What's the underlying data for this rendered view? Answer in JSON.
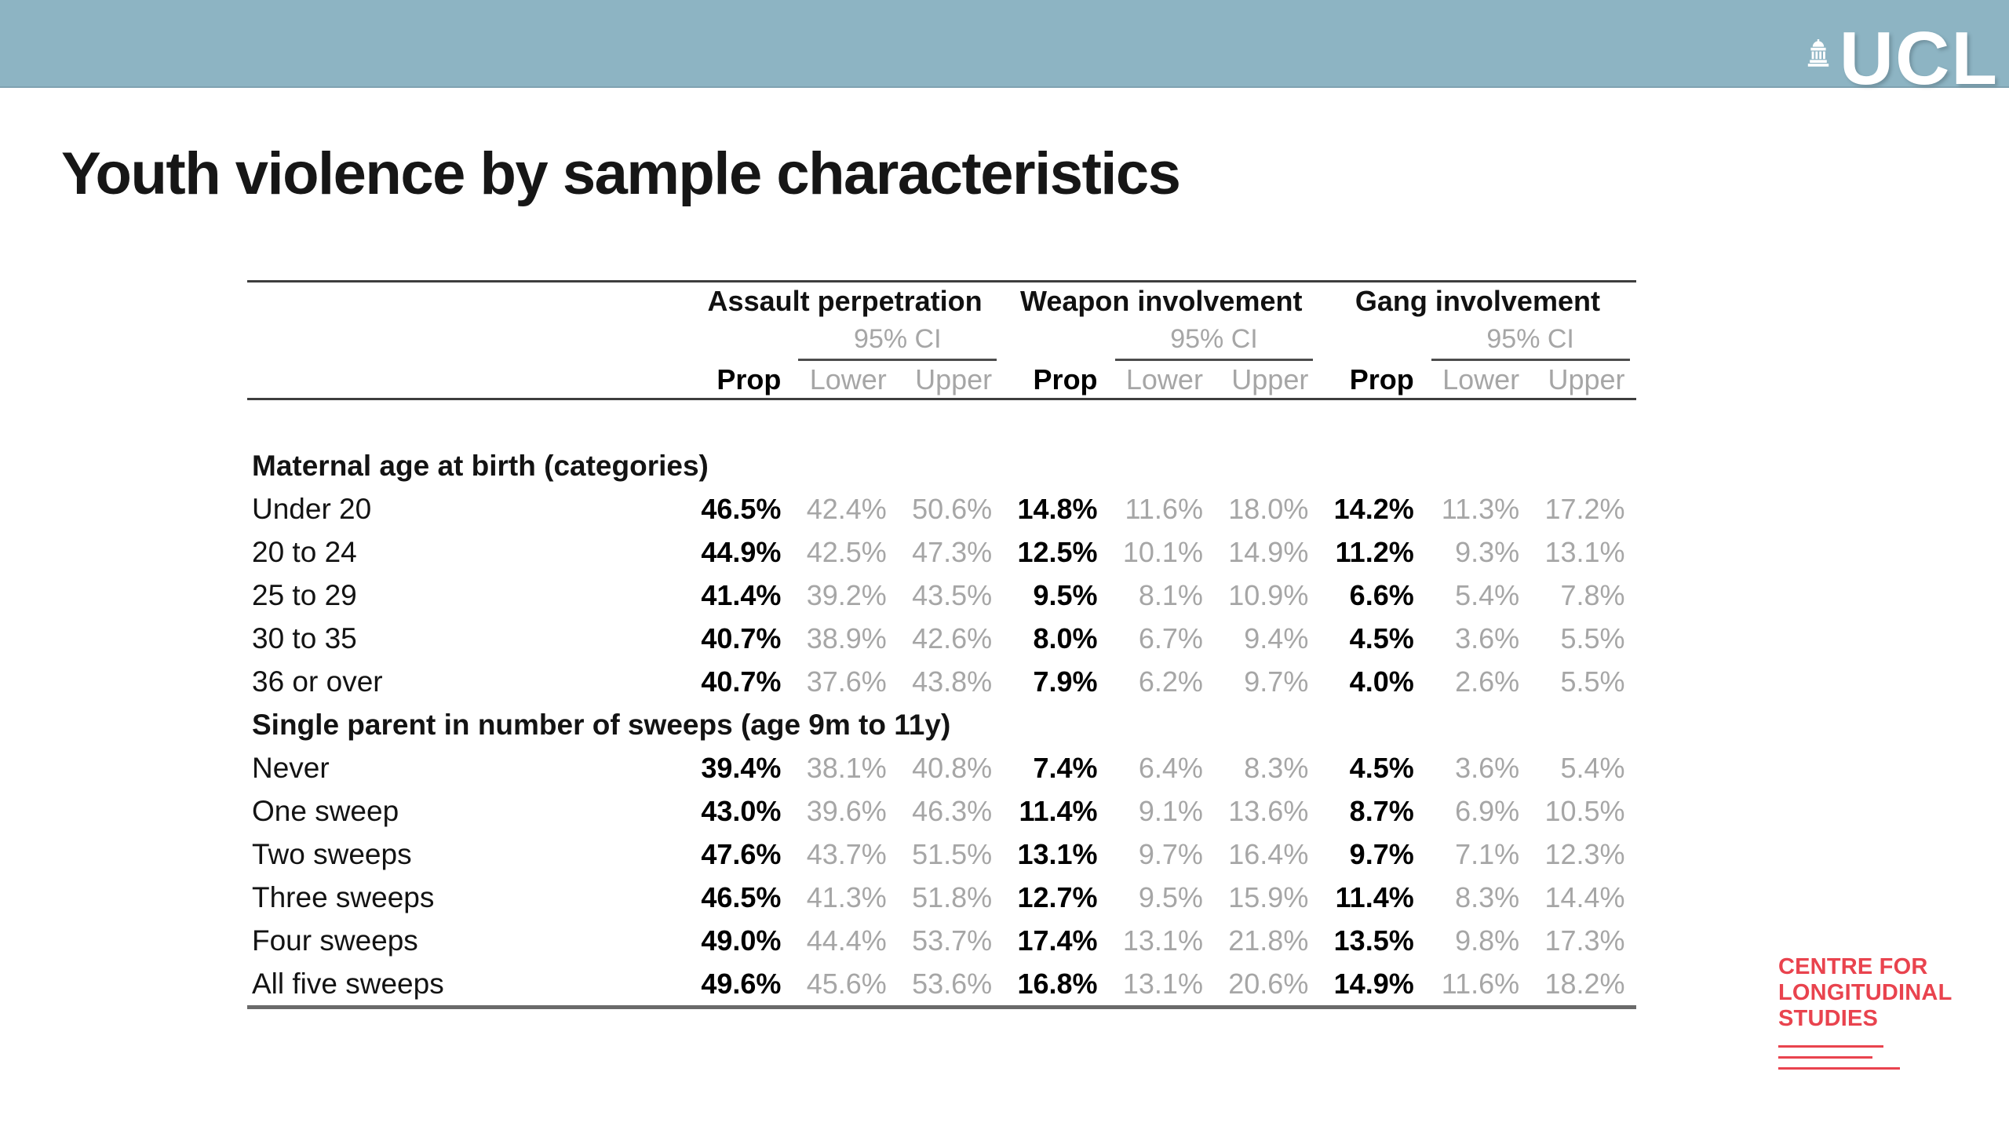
{
  "banner": {
    "logo_text": "UCL"
  },
  "title": "Youth violence by sample characteristics",
  "table": {
    "groups": [
      {
        "label": "Assault perpetration",
        "ci_label": "95% CI"
      },
      {
        "label": "Weapon involvement",
        "ci_label": "95% CI"
      },
      {
        "label": "Gang involvement",
        "ci_label": "95% CI"
      }
    ],
    "col_headers": {
      "prop": "Prop",
      "lower": "Lower",
      "upper": "Upper"
    },
    "sections": [
      {
        "header": "Maternal age at birth (categories)",
        "rows": [
          {
            "label": "Under 20",
            "values": [
              "46.5%",
              "42.4%",
              "50.6%",
              "14.8%",
              "11.6%",
              "18.0%",
              "14.2%",
              "11.3%",
              "17.2%"
            ]
          },
          {
            "label": "20 to 24",
            "values": [
              "44.9%",
              "42.5%",
              "47.3%",
              "12.5%",
              "10.1%",
              "14.9%",
              "11.2%",
              "9.3%",
              "13.1%"
            ]
          },
          {
            "label": "25 to 29",
            "values": [
              "41.4%",
              "39.2%",
              "43.5%",
              "9.5%",
              "8.1%",
              "10.9%",
              "6.6%",
              "5.4%",
              "7.8%"
            ]
          },
          {
            "label": "30 to 35",
            "values": [
              "40.7%",
              "38.9%",
              "42.6%",
              "8.0%",
              "6.7%",
              "9.4%",
              "4.5%",
              "3.6%",
              "5.5%"
            ]
          },
          {
            "label": "36 or over",
            "values": [
              "40.7%",
              "37.6%",
              "43.8%",
              "7.9%",
              "6.2%",
              "9.7%",
              "4.0%",
              "2.6%",
              "5.5%"
            ]
          }
        ]
      },
      {
        "header": "Single parent in number of sweeps (age 9m to 11y)",
        "rows": [
          {
            "label": "Never",
            "values": [
              "39.4%",
              "38.1%",
              "40.8%",
              "7.4%",
              "6.4%",
              "8.3%",
              "4.5%",
              "3.6%",
              "5.4%"
            ]
          },
          {
            "label": "One sweep",
            "values": [
              "43.0%",
              "39.6%",
              "46.3%",
              "11.4%",
              "9.1%",
              "13.6%",
              "8.7%",
              "6.9%",
              "10.5%"
            ]
          },
          {
            "label": "Two sweeps",
            "values": [
              "47.6%",
              "43.7%",
              "51.5%",
              "13.1%",
              "9.7%",
              "16.4%",
              "9.7%",
              "7.1%",
              "12.3%"
            ]
          },
          {
            "label": "Three sweeps",
            "values": [
              "46.5%",
              "41.3%",
              "51.8%",
              "12.7%",
              "9.5%",
              "15.9%",
              "11.4%",
              "8.3%",
              "14.4%"
            ]
          },
          {
            "label": "Four sweeps",
            "values": [
              "49.0%",
              "44.4%",
              "53.7%",
              "17.4%",
              "13.1%",
              "21.8%",
              "13.5%",
              "9.8%",
              "17.3%"
            ]
          },
          {
            "label": "All five sweeps",
            "values": [
              "49.6%",
              "45.6%",
              "53.6%",
              "16.8%",
              "13.1%",
              "20.6%",
              "14.9%",
              "11.6%",
              "18.2%"
            ]
          }
        ]
      }
    ]
  },
  "footer_logo": {
    "lines": [
      "CENTRE FOR",
      "LONGITUDINAL",
      "STUDIES"
    ]
  },
  "colors": {
    "banner": "#8db4c3",
    "accent_red": "#e9434e",
    "ci_gray": "#a6a6a6"
  }
}
